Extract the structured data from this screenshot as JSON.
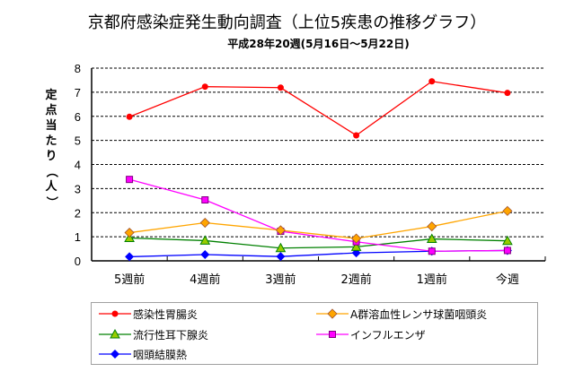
{
  "chart_data": {
    "type": "line",
    "title": "京都府感染症発生動向調査（上位5疾患の推移グラフ）",
    "subtitle": "平成28年20週(5月16日～5月22日)",
    "xlabel": "",
    "ylabel": "定点当たり（人）",
    "ylabel_chars": [
      "定",
      "点",
      "当",
      "た",
      "り",
      "（",
      "人",
      "）"
    ],
    "ylim": [
      0,
      8
    ],
    "yticks": [
      "0",
      "1",
      "2",
      "3",
      "4",
      "5",
      "6",
      "7",
      "8"
    ],
    "grid": "horizontal-dashed",
    "legend_position": "bottom",
    "categories": [
      "5週前",
      "4週前",
      "3週前",
      "2週前",
      "1週前",
      "今週"
    ],
    "series": [
      {
        "name": "感染性胃腸炎",
        "color": "#ff0000",
        "marker": "circle",
        "values": [
          5.98,
          7.23,
          7.19,
          5.21,
          7.45,
          6.97
        ]
      },
      {
        "name": "A群溶血性レンサ球菌咽頭炎",
        "color": "#ffa500",
        "marker": "diamond",
        "values": [
          1.17,
          1.58,
          1.27,
          0.93,
          1.43,
          2.07
        ]
      },
      {
        "name": "流行性耳下腺炎",
        "color": "#008000",
        "marker": "triangle",
        "values": [
          0.95,
          0.84,
          0.53,
          0.58,
          0.91,
          0.83
        ]
      },
      {
        "name": "インフルエンザ",
        "color": "#ff00ff",
        "marker": "square",
        "values": [
          3.38,
          2.53,
          1.23,
          0.79,
          0.4,
          0.43
        ]
      },
      {
        "name": "咽頭結膜熱",
        "color": "#0000ff",
        "marker": "diamond-filled",
        "values": [
          0.17,
          0.26,
          0.18,
          0.33,
          0.4,
          0.43
        ]
      }
    ]
  }
}
